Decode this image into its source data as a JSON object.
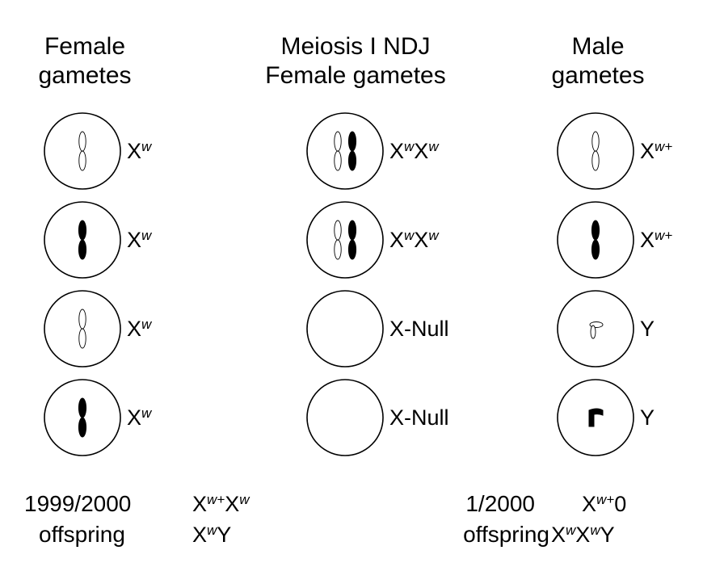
{
  "columns": [
    {
      "heading": [
        "Female",
        "gametes"
      ],
      "cells": [
        {
          "chromosomes": [
            "open-X"
          ],
          "label": {
            "base": "X",
            "sup": "w",
            "base2": "",
            "sup2": ""
          }
        },
        {
          "chromosomes": [
            "filled-X"
          ],
          "label": {
            "base": "X",
            "sup": "w",
            "base2": "",
            "sup2": ""
          }
        },
        {
          "chromosomes": [
            "open-X"
          ],
          "label": {
            "base": "X",
            "sup": "w",
            "base2": "",
            "sup2": ""
          }
        },
        {
          "chromosomes": [
            "filled-X"
          ],
          "label": {
            "base": "X",
            "sup": "w",
            "base2": "",
            "sup2": ""
          }
        }
      ]
    },
    {
      "heading": [
        "Meiosis I NDJ",
        "Female gametes"
      ],
      "cells": [
        {
          "chromosomes": [
            "open-X",
            "filled-X"
          ],
          "label": {
            "base": "X",
            "sup": "w",
            "base2": "X",
            "sup2": "w"
          }
        },
        {
          "chromosomes": [
            "open-X",
            "filled-X"
          ],
          "label": {
            "base": "X",
            "sup": "w",
            "base2": "X",
            "sup2": "w"
          }
        },
        {
          "chromosomes": [],
          "label": {
            "base": "X-Null",
            "sup": "",
            "base2": "",
            "sup2": ""
          }
        },
        {
          "chromosomes": [],
          "label": {
            "base": "X-Null",
            "sup": "",
            "base2": "",
            "sup2": ""
          }
        }
      ]
    },
    {
      "heading": [
        "Male",
        "gametes"
      ],
      "cells": [
        {
          "chromosomes": [
            "open-X"
          ],
          "label": {
            "base": "X",
            "sup": "w+",
            "base2": "",
            "sup2": ""
          }
        },
        {
          "chromosomes": [
            "filled-X"
          ],
          "label": {
            "base": "X",
            "sup": "w+",
            "base2": "",
            "sup2": ""
          }
        },
        {
          "chromosomes": [
            "open-Y"
          ],
          "label": {
            "base": "Y",
            "sup": "",
            "base2": "",
            "sup2": ""
          }
        },
        {
          "chromosomes": [
            "filled-Y"
          ],
          "label": {
            "base": "Y",
            "sup": "",
            "base2": "",
            "sup2": ""
          }
        }
      ]
    }
  ],
  "footer": {
    "left": {
      "ratio": "1999/2000",
      "word": "offspring",
      "genotype1": [
        {
          "b": "X",
          "s": "w+"
        },
        {
          "b": "X",
          "s": "w"
        }
      ],
      "genotype2": [
        {
          "b": "X",
          "s": "w"
        },
        {
          "b": "Y",
          "s": ""
        }
      ]
    },
    "right": {
      "ratio": "1/2000",
      "word": "offspring",
      "genotype1": [
        {
          "b": "X",
          "s": "w+"
        },
        {
          "b": "0",
          "s": ""
        }
      ],
      "genotype2": [
        {
          "b": "X",
          "s": "w"
        },
        {
          "b": "X",
          "s": "w"
        },
        {
          "b": "Y",
          "s": ""
        }
      ]
    }
  }
}
